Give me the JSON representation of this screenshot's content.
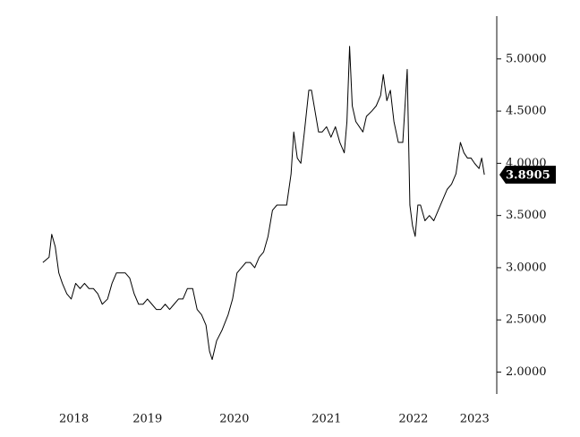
{
  "chart_data": {
    "type": "line",
    "series": [
      {
        "color": "#000000",
        "x": [
          2017.82,
          2017.89,
          2017.92,
          2017.96,
          2018.0,
          2018.04,
          2018.09,
          2018.14,
          2018.19,
          2018.24,
          2018.29,
          2018.34,
          2018.39,
          2018.44,
          2018.49,
          2018.55,
          2018.6,
          2018.65,
          2018.7,
          2018.75,
          2018.8,
          2018.85,
          2018.9,
          2018.95,
          2019.0,
          2019.05,
          2019.1,
          2019.15,
          2019.2,
          2019.25,
          2019.3,
          2019.35,
          2019.4,
          2019.45,
          2019.51,
          2019.56,
          2019.61,
          2019.66,
          2019.7,
          2019.73,
          2019.78,
          2019.84,
          2019.91,
          2019.96,
          2020.01,
          2020.06,
          2020.11,
          2020.16,
          2020.21,
          2020.26,
          2020.31,
          2020.36,
          2020.41,
          2020.46,
          2020.52,
          2020.57,
          2020.62,
          2020.65,
          2020.69,
          2020.73,
          2020.77,
          2020.82,
          2020.85,
          2020.89,
          2020.93,
          2020.97,
          2021.02,
          2021.07,
          2021.12,
          2021.17,
          2021.22,
          2021.25,
          2021.28,
          2021.31,
          2021.35,
          2021.39,
          2021.43,
          2021.47,
          2021.53,
          2021.58,
          2021.63,
          2021.66,
          2021.7,
          2021.74,
          2021.78,
          2021.83,
          2021.88,
          2021.93,
          2021.96,
          2021.99,
          2022.02,
          2022.05,
          2022.08,
          2022.13,
          2022.18,
          2022.23,
          2022.28,
          2022.33,
          2022.38,
          2022.43,
          2022.48,
          2022.53,
          2022.57,
          2022.61,
          2022.65,
          2022.69,
          2022.74,
          2022.77,
          2022.8
        ],
        "values": [
          3.05,
          3.1,
          3.32,
          3.2,
          2.95,
          2.85,
          2.75,
          2.7,
          2.85,
          2.8,
          2.85,
          2.8,
          2.8,
          2.75,
          2.65,
          2.7,
          2.85,
          2.95,
          2.95,
          2.95,
          2.9,
          2.75,
          2.65,
          2.65,
          2.7,
          2.65,
          2.6,
          2.6,
          2.65,
          2.6,
          2.65,
          2.7,
          2.7,
          2.8,
          2.8,
          2.6,
          2.55,
          2.45,
          2.2,
          2.12,
          2.3,
          2.4,
          2.55,
          2.7,
          2.95,
          3.0,
          3.05,
          3.05,
          3.0,
          3.1,
          3.15,
          3.3,
          3.55,
          3.6,
          3.6,
          3.6,
          3.9,
          4.3,
          4.05,
          4.0,
          4.3,
          4.7,
          4.7,
          4.5,
          4.3,
          4.3,
          4.35,
          4.25,
          4.35,
          4.2,
          4.1,
          4.4,
          5.12,
          4.55,
          4.4,
          4.35,
          4.3,
          4.45,
          4.5,
          4.55,
          4.65,
          4.85,
          4.6,
          4.7,
          4.4,
          4.2,
          4.2,
          4.9,
          3.6,
          3.4,
          3.3,
          3.6,
          3.6,
          3.45,
          3.5,
          3.45,
          3.55,
          3.65,
          3.75,
          3.8,
          3.9,
          4.2,
          4.1,
          4.05,
          4.05,
          4.0,
          3.95,
          4.05,
          3.8905
        ],
        "end_label": "3.8905"
      }
    ],
    "xlim": [
      2017.7,
      2022.94
    ],
    "xticks": [
      {
        "value": 2018.17,
        "label": "2018"
      },
      {
        "value": 2019.0,
        "label": "2019"
      },
      {
        "value": 2019.98,
        "label": "2020"
      },
      {
        "value": 2021.02,
        "label": "2021"
      },
      {
        "value": 2022.0,
        "label": "2022"
      },
      {
        "value": 2022.69,
        "label": "2023"
      }
    ],
    "ylim": [
      1.79,
      5.41
    ],
    "yticks": [
      {
        "value": 2,
        "label": "2.0000"
      },
      {
        "value": 2.5,
        "label": "2.5000"
      },
      {
        "value": 3,
        "label": "3.0000"
      },
      {
        "value": 3.5,
        "label": "3.5000"
      },
      {
        "value": 4,
        "label": "4.0000"
      },
      {
        "value": 4.5,
        "label": "4.5000"
      },
      {
        "value": 5,
        "label": "5.0000"
      }
    ],
    "y_axis_side": "right"
  }
}
